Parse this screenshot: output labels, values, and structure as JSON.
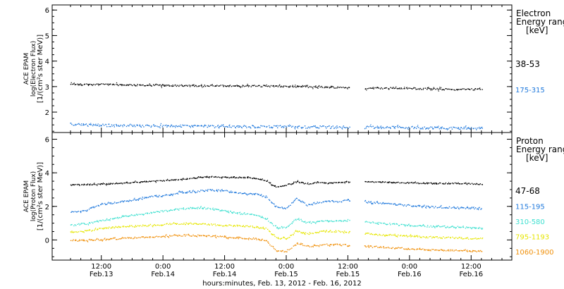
{
  "chart_data": [
    {
      "type": "scatter",
      "panel": "electron",
      "ylabel_lines": [
        "ACE EPAM",
        "log(Electron Flux)",
        "[1/(cm²s ster MeV)]"
      ],
      "legend_title": [
        "Electron",
        "Energy range",
        "[keV]"
      ],
      "yticks": [
        "2",
        "3",
        "4",
        "5",
        "6"
      ],
      "ylim": [
        1.2,
        6.2
      ],
      "x_range_hours": [
        0,
        84
      ],
      "data_gap_hours": [
        [
          54.3,
          57.2
        ]
      ],
      "legend_placement": "right",
      "series": [
        {
          "name": "38-53",
          "color": "#000000",
          "x": [
            0,
            6,
            12,
            18,
            24,
            30,
            36,
            42,
            48,
            54,
            57,
            63,
            69,
            75,
            80
          ],
          "values": [
            3.1,
            3.1,
            3.08,
            3.06,
            3.05,
            3.05,
            3.04,
            3.03,
            3.0,
            2.98,
            2.95,
            2.96,
            2.93,
            2.9,
            2.92
          ]
        },
        {
          "name": "175-315",
          "color": "#1e78dc",
          "x": [
            0,
            6,
            12,
            18,
            24,
            30,
            36,
            42,
            48,
            54,
            57,
            63,
            69,
            75,
            80
          ],
          "values": [
            1.55,
            1.5,
            1.48,
            1.47,
            1.46,
            1.45,
            1.45,
            1.44,
            1.43,
            1.42,
            1.42,
            1.42,
            1.4,
            1.39,
            1.38
          ]
        }
      ]
    },
    {
      "type": "scatter",
      "panel": "proton",
      "ylabel_lines": [
        "ACE EPAM",
        "log(Proton Flux)",
        "[1/(cm²s ster MeV)]"
      ],
      "legend_title": [
        "Proton",
        "Energy range",
        "[keV]"
      ],
      "yticks": [
        "0",
        "2",
        "4",
        "6"
      ],
      "ylim": [
        -1.2,
        6.4
      ],
      "x_range_hours": [
        0,
        84
      ],
      "data_gap_hours": [
        [
          54.3,
          57.2
        ]
      ],
      "legend_placement": "right",
      "xtick_labels": [
        {
          "x": 6,
          "lines": [
            "12:00",
            "Feb.13"
          ]
        },
        {
          "x": 18,
          "lines": [
            "0:00",
            "Feb.14"
          ]
        },
        {
          "x": 30,
          "lines": [
            "12:00",
            "Feb.14"
          ]
        },
        {
          "x": 42,
          "lines": [
            "0:00",
            "Feb.15"
          ]
        },
        {
          "x": 54,
          "lines": [
            "12:00",
            "Feb.15"
          ]
        },
        {
          "x": 66,
          "lines": [
            "0:00",
            "Feb.16"
          ]
        },
        {
          "x": 78,
          "lines": [
            "12:00",
            "Feb.16"
          ]
        }
      ],
      "xlabel": "hours:minutes, Feb. 13, 2012 - Feb. 16, 2012",
      "series": [
        {
          "name": "47-68",
          "color": "#000000",
          "x": [
            0,
            6,
            12,
            18,
            24,
            27,
            30,
            33,
            36,
            38,
            40,
            42,
            44,
            46,
            48,
            50,
            52,
            54,
            57,
            63,
            69,
            75,
            80
          ],
          "values": [
            3.3,
            3.35,
            3.45,
            3.55,
            3.7,
            3.8,
            3.75,
            3.75,
            3.7,
            3.55,
            3.15,
            3.3,
            3.5,
            3.35,
            3.45,
            3.4,
            3.45,
            3.5,
            3.5,
            3.45,
            3.4,
            3.4,
            3.35
          ]
        },
        {
          "name": "115-195",
          "color": "#1e78dc",
          "x": [
            0,
            3,
            6,
            9,
            12,
            15,
            18,
            21,
            24,
            27,
            30,
            33,
            36,
            38,
            40,
            42,
            44,
            46,
            48,
            50,
            52,
            54,
            57,
            63,
            69,
            75,
            80
          ],
          "values": [
            1.7,
            1.8,
            2.15,
            2.25,
            2.4,
            2.6,
            2.65,
            2.85,
            2.9,
            3.0,
            2.95,
            2.8,
            2.75,
            2.6,
            2.0,
            1.9,
            2.5,
            2.1,
            2.25,
            2.35,
            2.3,
            2.4,
            2.3,
            2.15,
            2.0,
            1.95,
            1.9
          ]
        },
        {
          "name": "310-580",
          "color": "#3fe0d0",
          "x": [
            0,
            3,
            6,
            9,
            12,
            15,
            18,
            21,
            24,
            27,
            30,
            33,
            36,
            38,
            40,
            42,
            44,
            46,
            48,
            50,
            52,
            54,
            57,
            63,
            69,
            75,
            80
          ],
          "values": [
            0.9,
            1.0,
            1.2,
            1.35,
            1.5,
            1.6,
            1.75,
            1.85,
            1.95,
            1.9,
            1.75,
            1.6,
            1.5,
            1.3,
            0.75,
            0.8,
            1.3,
            1.05,
            1.1,
            1.15,
            1.15,
            1.2,
            1.1,
            0.95,
            0.85,
            0.8,
            0.7
          ]
        },
        {
          "name": "795-1193",
          "color": "#e6e600",
          "x": [
            0,
            3,
            6,
            9,
            12,
            15,
            18,
            21,
            24,
            27,
            30,
            33,
            36,
            38,
            40,
            42,
            44,
            46,
            48,
            50,
            52,
            54,
            57,
            63,
            69,
            75,
            80
          ],
          "values": [
            0.5,
            0.55,
            0.7,
            0.8,
            0.85,
            0.9,
            0.95,
            1.0,
            1.0,
            0.95,
            0.9,
            0.85,
            0.8,
            0.7,
            0.15,
            0.1,
            0.55,
            0.4,
            0.5,
            0.55,
            0.55,
            0.5,
            0.4,
            0.3,
            0.2,
            0.15,
            0.1
          ]
        },
        {
          "name": "1060-1900",
          "color": "#f0900a",
          "x": [
            0,
            3,
            6,
            9,
            12,
            15,
            18,
            21,
            24,
            27,
            30,
            33,
            36,
            38,
            40,
            42,
            44,
            46,
            48,
            50,
            52,
            54,
            57,
            63,
            69,
            75,
            80
          ],
          "values": [
            0.0,
            0.0,
            0.05,
            0.1,
            0.15,
            0.2,
            0.25,
            0.3,
            0.3,
            0.25,
            0.2,
            0.15,
            0.1,
            0.0,
            -0.6,
            -0.65,
            -0.2,
            -0.35,
            -0.3,
            -0.25,
            -0.25,
            -0.3,
            -0.35,
            -0.45,
            -0.55,
            -0.6,
            -0.65
          ]
        }
      ]
    }
  ]
}
